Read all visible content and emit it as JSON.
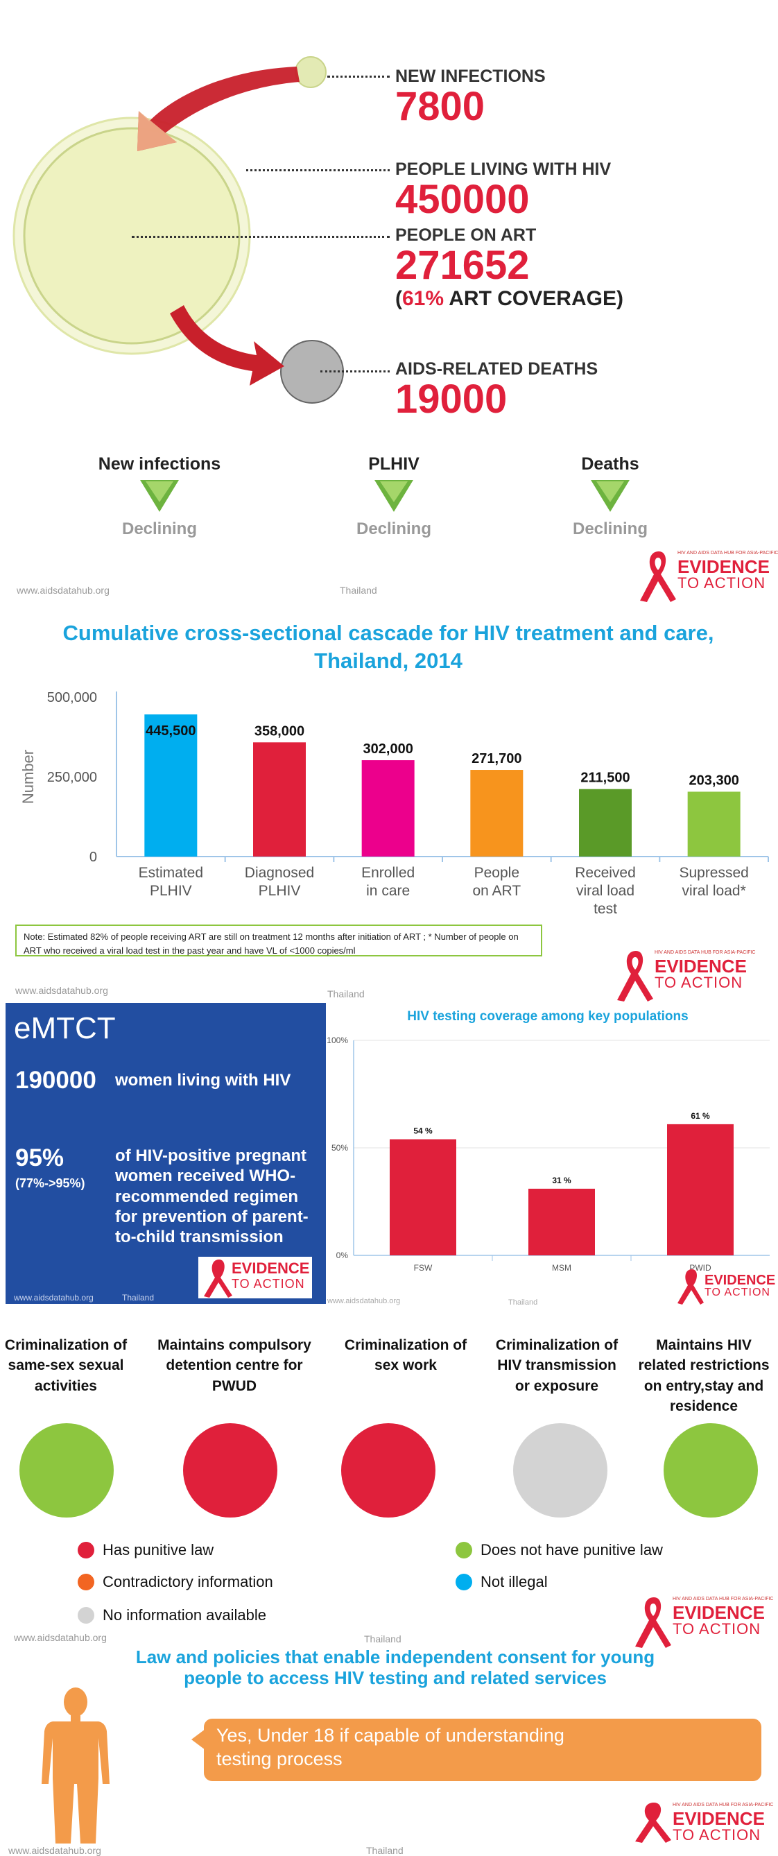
{
  "overview": {
    "new_infections": {
      "label": "NEW INFECTIONS",
      "value": "7800"
    },
    "plhiv": {
      "label": "PEOPLE LIVING WITH HIV",
      "value": "450000"
    },
    "on_art": {
      "label": "PEOPLE ON ART",
      "value": "271652",
      "coverage_open": "(",
      "coverage_pct": "61%",
      "coverage_text": " ART COVERAGE)"
    },
    "deaths": {
      "label": "AIDS-RELATED DEATHS",
      "value": "19000"
    }
  },
  "trends": [
    {
      "title": "New infections",
      "status": "Declining"
    },
    {
      "title": "PLHIV",
      "status": "Declining"
    },
    {
      "title": "Deaths",
      "status": "Declining"
    }
  ],
  "footer": {
    "site": "www.aidsdatahub.org",
    "country": "Thailand"
  },
  "logo": {
    "tagline": "HIV AND AIDS DATA HUB FOR ASIA-PACIFIC",
    "line1": "EVIDENCE",
    "line2": "TO ACTION"
  },
  "cascade": {
    "title": "Cumulative cross-sectional cascade for HIV treatment and care, Thailand, 2014",
    "note": "Note: Estimated 82% of people receiving ART are still on treatment 12 months after initiation of ART ; * Number of people on ART who received a viral load test in the past year and have VL of <1000 copies/ml"
  },
  "emtct": {
    "heading": "eMTCT",
    "women_value": "190000",
    "women_text": "women living with HIV",
    "pct_value": "95%",
    "pct_range": "(77%->95%)",
    "pct_text": "of HIV-positive pregnant women received WHO-recommended regimen for prevention of parent-to-child transmission"
  },
  "testing": {
    "title": "HIV testing coverage among key populations"
  },
  "criminalization": [
    {
      "label": "Criminalization of same-sex sexual activities",
      "color": "#8dc63f"
    },
    {
      "label": "Maintains compulsory detention centre for PWUD",
      "color": "#e0203b"
    },
    {
      "label": "Criminalization of sex work",
      "color": "#e0203b"
    },
    {
      "label": "Criminalization of HIV transmission or exposure",
      "color": "#d3d3d3"
    },
    {
      "label": "Maintains HIV related restrictions on entry,stay and residence",
      "color": "#8dc63f"
    }
  ],
  "legend": [
    {
      "label": "Has punitive law",
      "color": "#e0203b"
    },
    {
      "label": "Does not have punitive law",
      "color": "#8dc63f"
    },
    {
      "label": "Contradictory information",
      "color": "#f26522"
    },
    {
      "label": "Not illegal",
      "color": "#00aeef"
    },
    {
      "label": "No information available",
      "color": "#d3d3d3"
    }
  ],
  "consent": {
    "title": "Law and policies that enable independent consent for young people to access HIV testing and related services",
    "answer": "Yes, Under 18 if capable of understanding testing process"
  },
  "chart_data": [
    {
      "type": "bar",
      "title": "Cumulative cross-sectional cascade for HIV treatment and care, Thailand, 2014",
      "ylabel": "Number",
      "ylim": [
        0,
        500000
      ],
      "yticks": [
        "0",
        "250,000",
        "500,000"
      ],
      "categories": [
        "Estimated PLHIV",
        "Diagnosed PLHIV",
        "Enrolled in care",
        "People on ART",
        "Received viral load test",
        "Supressed viral load*"
      ],
      "category_lines": [
        [
          "Estimated",
          "PLHIV"
        ],
        [
          "Diagnosed",
          "PLHIV"
        ],
        [
          "Enrolled",
          "in care"
        ],
        [
          "People",
          "on ART"
        ],
        [
          "Received",
          "viral load",
          "test"
        ],
        [
          "Supressed",
          "viral load*"
        ]
      ],
      "values": [
        445500,
        358000,
        302000,
        271700,
        211500,
        203300
      ],
      "value_labels": [
        "445,500",
        "358,000",
        "302,000",
        "271,700",
        "211,500",
        "203,300"
      ],
      "colors": [
        "#00aeef",
        "#e0203b",
        "#ec008c",
        "#f7941d",
        "#5a9a28",
        "#8dc63f"
      ]
    },
    {
      "type": "bar",
      "title": "HIV testing coverage among key populations",
      "ylim": [
        0,
        100
      ],
      "yticks": [
        "0%",
        "50%",
        "100%"
      ],
      "categories": [
        "FSW",
        "MSM",
        "PWID"
      ],
      "values": [
        54,
        31,
        61
      ],
      "value_labels": [
        "54 %",
        "31 %",
        "61 %"
      ],
      "color": "#e0203b"
    }
  ]
}
